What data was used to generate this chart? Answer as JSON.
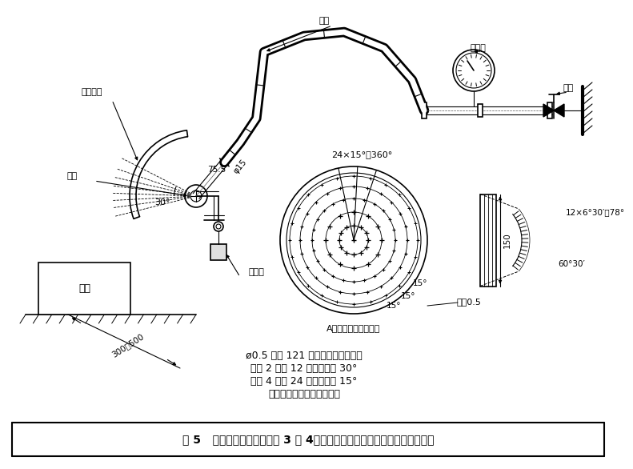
{
  "title": "图 5   检验第二位特征数字为 3 和 4，防淋水和溅水手持式试验装置（喷头）",
  "background_color": "#ffffff",
  "text_color": "#000000",
  "line_color": "#000000",
  "notes_line1": "ø0.5 的孔 121 个，其中一个在中央",
  "notes_line2": "里面 2 圈共 12 个孔，间距 30°",
  "notes_line3": "外面 4 圈共 24 个孔，间距 15°",
  "notes_line4": "活动挡板：铝，喷头：黄铜",
  "label_snake": "蛇管",
  "label_pressure": "压力表",
  "label_valve": "阀门",
  "label_movable": "活动挡板",
  "label_nozzle": "喷头",
  "label_sample": "试样",
  "label_counter": "平衡锤",
  "label_aview": "A向视图（移去挡板）",
  "label_holedia": "孔径0.5",
  "label_755": "75.5",
  "label_phi15": "φ15",
  "label_30deg": "30°",
  "label_24x15": "24×15°＝360°",
  "label_15a": "15°",
  "label_15b": "15°",
  "label_15c": "15°",
  "label_300500": "300～500",
  "label_12x630": "12×6°30′＝78°",
  "label_6030": "60°30′",
  "label_150": "150"
}
